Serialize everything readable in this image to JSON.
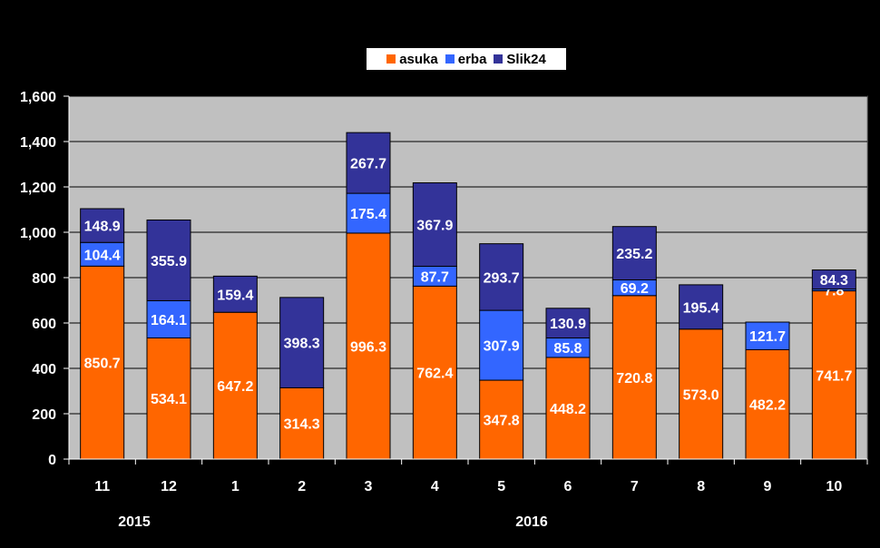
{
  "chart_data": {
    "type": "bar",
    "stacked": true,
    "categories": [
      "11",
      "12",
      "1",
      "2",
      "3",
      "4",
      "5",
      "6",
      "7",
      "8",
      "9",
      "10"
    ],
    "year_labels": [
      {
        "label": "2015"
      },
      {
        "label": "2016"
      }
    ],
    "series": [
      {
        "name": "asuka",
        "color": "#FF6600",
        "values": [
          850.7,
          534.1,
          647.2,
          314.3,
          996.3,
          762.4,
          347.8,
          448.2,
          720.8,
          573.0,
          482.2,
          741.7
        ],
        "labels": [
          "850.7",
          "534.1",
          "647.2",
          "314.3",
          "996.3",
          "762.4",
          "347.8",
          "448.2",
          "720.8",
          "573.0",
          "482.2",
          "741.7"
        ]
      },
      {
        "name": "erba",
        "color": "#3366FF",
        "values": [
          104.4,
          164.1,
          0,
          0,
          175.4,
          87.7,
          307.9,
          85.8,
          69.2,
          0,
          121.7,
          7.8
        ],
        "labels": [
          "104.4",
          "164.1",
          "",
          "",
          "175.4",
          "87.7",
          "307.9",
          "85.8",
          "69.2",
          "",
          "121.7",
          "7.8"
        ]
      },
      {
        "name": "Slik24",
        "color": "#333399",
        "values": [
          148.9,
          355.9,
          159.4,
          398.3,
          267.7,
          367.9,
          293.7,
          130.9,
          235.2,
          195.4,
          0,
          84.3
        ],
        "labels": [
          "148.9",
          "355.9",
          "159.4",
          "398.3",
          "267.7",
          "367.9",
          "293.7",
          "130.9",
          "235.2",
          "195.4",
          "",
          "84.3"
        ]
      }
    ],
    "ylim": [
      0,
      1600
    ],
    "yticks": [
      "0",
      "200",
      "400",
      "600",
      "800",
      "1,000",
      "1,200",
      "1,400",
      "1,600"
    ],
    "xlabel": "",
    "ylabel": "",
    "title": "",
    "legend_position": "top-center",
    "grid": true,
    "plot_background": "#C0C0C0",
    "page_background": "#000000",
    "label_color": "#FFFFFF"
  }
}
